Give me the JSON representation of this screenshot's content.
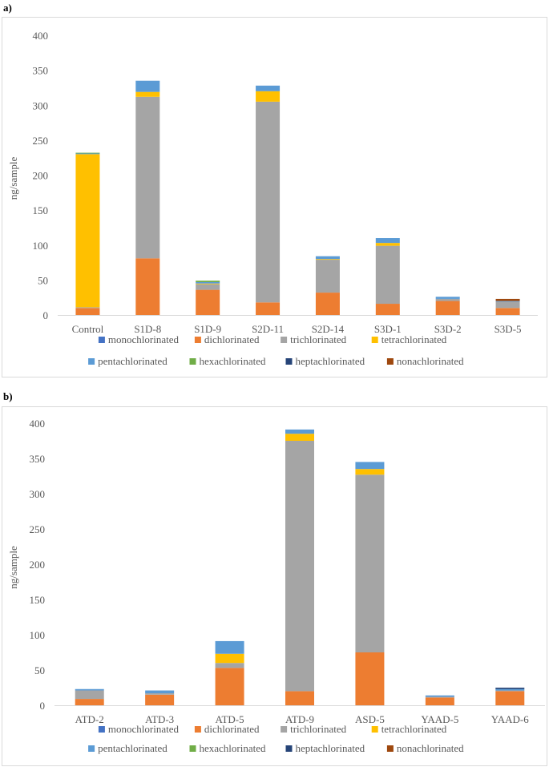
{
  "panels": [
    {
      "label": "a)"
    },
    {
      "label": "b)"
    }
  ],
  "legend": {
    "entries": [
      {
        "name": "monochlorinated",
        "color": "#4472C4"
      },
      {
        "name": "dichlorinated",
        "color": "#ED7D31"
      },
      {
        "name": "trichlorinated",
        "color": "#A5A5A5"
      },
      {
        "name": "tetrachlorinated",
        "color": "#FFC000"
      },
      {
        "name": "pentachlorinated",
        "color": "#5B9BD5"
      },
      {
        "name": "hexachlorinated",
        "color": "#70AD47"
      },
      {
        "name": "heptachlorinated",
        "color": "#264478"
      },
      {
        "name": "nonachlorinated",
        "color": "#9E480E"
      }
    ]
  },
  "chart_data": [
    {
      "type": "bar",
      "stacked": true,
      "ylabel": "ng/sample",
      "ylim": [
        0,
        400
      ],
      "yticks": [
        0,
        50,
        100,
        150,
        200,
        250,
        300,
        350,
        400
      ],
      "grid": false,
      "legend_position": "bottom",
      "categories": [
        "Control",
        "S1D-8",
        "S1D-9",
        "S2D-11",
        "S2D-14",
        "S3D-1",
        "S3D-2",
        "S3D-5"
      ],
      "series": [
        {
          "name": "monochlorinated",
          "values": [
            0,
            0,
            0,
            0,
            0,
            0,
            0,
            0
          ]
        },
        {
          "name": "dichlorinated",
          "values": [
            10,
            81,
            36,
            18,
            32,
            16,
            20,
            10
          ]
        },
        {
          "name": "trichlorinated",
          "values": [
            1,
            231,
            8,
            287,
            47,
            83,
            3,
            9
          ]
        },
        {
          "name": "tetrachlorinated",
          "values": [
            219,
            7,
            1,
            15,
            1,
            4,
            0,
            0
          ]
        },
        {
          "name": "pentachlorinated",
          "values": [
            1,
            16,
            2,
            8,
            4,
            7,
            3,
            1
          ]
        },
        {
          "name": "hexachlorinated",
          "values": [
            1,
            0,
            2,
            0,
            0,
            0,
            0,
            0
          ]
        },
        {
          "name": "heptachlorinated",
          "values": [
            0,
            0,
            0,
            0,
            0,
            0,
            0,
            0
          ]
        },
        {
          "name": "nonachlorinated",
          "values": [
            0,
            0,
            0,
            0,
            0,
            0,
            0,
            3
          ]
        }
      ]
    },
    {
      "type": "bar",
      "stacked": true,
      "ylabel": "ng/sample",
      "ylim": [
        0,
        400
      ],
      "yticks": [
        0,
        50,
        100,
        150,
        200,
        250,
        300,
        350,
        400
      ],
      "grid": false,
      "legend_position": "bottom",
      "categories": [
        "ATD-2",
        "ATD-3",
        "ATD-5",
        "ATD-9",
        "ASD-5",
        "YAAD-5",
        "YAAD-6"
      ],
      "series": [
        {
          "name": "monochlorinated",
          "values": [
            0,
            0,
            0,
            0,
            0,
            0,
            0
          ]
        },
        {
          "name": "dichlorinated",
          "values": [
            9,
            15,
            53,
            20,
            75,
            11,
            20
          ]
        },
        {
          "name": "trichlorinated",
          "values": [
            12,
            2,
            7,
            355,
            252,
            1,
            1
          ]
        },
        {
          "name": "tetrachlorinated",
          "values": [
            0,
            0,
            13,
            10,
            8,
            0,
            0
          ]
        },
        {
          "name": "pentachlorinated",
          "values": [
            2,
            4,
            18,
            6,
            10,
            2,
            2
          ]
        },
        {
          "name": "hexachlorinated",
          "values": [
            0,
            0,
            0,
            0,
            0,
            0,
            0
          ]
        },
        {
          "name": "heptachlorinated",
          "values": [
            0,
            0,
            0,
            0,
            0,
            0,
            2
          ]
        },
        {
          "name": "nonachlorinated",
          "values": [
            0,
            0,
            0,
            0,
            0,
            0,
            0
          ]
        }
      ]
    }
  ]
}
